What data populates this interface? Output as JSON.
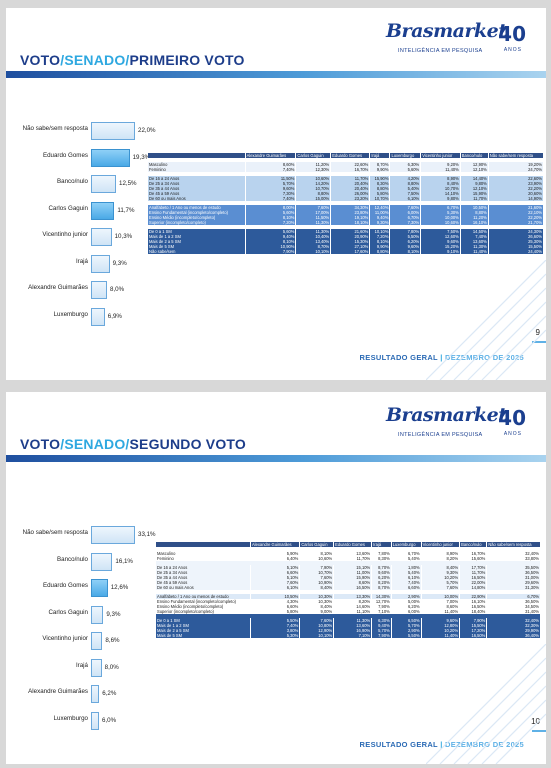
{
  "brand": {
    "name": "Brasmarket",
    "tagline": "INTELIGÊNCIA EM PESQUISA",
    "years": "40",
    "years_label": "ANOS"
  },
  "slides": [
    {
      "title_a": "VOTO",
      "title_b": "SENADO",
      "title_c": "PRIMEIRO VOTO",
      "page": "9",
      "footer_a": "RESULTADO GERAL",
      "footer_b": "DEZEMBRO DE 2025",
      "chart_data": {
        "type": "bar",
        "categories": [
          "Não sabe/sem resposta",
          "Eduardo Gomes",
          "Banco/nulo",
          "Carlos Gaguin",
          "Vicentinho junior",
          "Irajá",
          "Alexandre Guimarães",
          "Luxemburgo"
        ],
        "values": [
          22.0,
          19.3,
          12.5,
          11.7,
          10.3,
          9.3,
          8.0,
          6.9
        ],
        "labels": [
          "22,0%",
          "19,3%",
          "12,5%",
          "11,7%",
          "10,3%",
          "9,3%",
          "8,0%",
          "6,9%"
        ],
        "highlight": [
          false,
          true,
          false,
          true,
          false,
          false,
          false,
          false
        ],
        "xlim": [
          0,
          22
        ]
      },
      "table": {
        "headers": [
          "",
          "Alexandre Guimarães",
          "Carlos Gaguin",
          "Eduardo Gomes",
          "Irajá",
          "Luxemburgo",
          "Vicentinho junior",
          "Banco/nulo",
          "Não sabe/sem resposta"
        ],
        "groups": [
          {
            "rows": [
              [
                "Masculino",
                "8,60%",
                "11,20%",
                "22,60%",
                "8,70%",
                "6,30%",
                "9,20%",
                "12,90%",
                "19,20%"
              ],
              [
                "Feminino",
                "7,40%",
                "12,30%",
                "16,70%",
                "9,90%",
                "5,60%",
                "11,40%",
                "12,10%",
                "24,70%"
              ]
            ]
          },
          {
            "rows": [
              [
                "De 16 a 24 Anos",
                "11,50%",
                "10,60%",
                "11,70%",
                "15,90%",
                "4,20%",
                "8,90%",
                "14,40%",
                "22,60%"
              ],
              [
                "De 25 a 34 Anos",
                "5,70%",
                "14,20%",
                "20,40%",
                "8,30%",
                "8,80%",
                "8,40%",
                "9,80%",
                "23,90%"
              ],
              [
                "De 35 a 44 Anos",
                "9,60%",
                "10,70%",
                "20,40%",
                "8,80%",
                "5,40%",
                "10,70%",
                "12,10%",
                "22,20%"
              ],
              [
                "De 45 a 59 Anos",
                "7,30%",
                "8,80%",
                "26,00%",
                "5,80%",
                "7,50%",
                "14,10%",
                "15,90%",
                "20,60%"
              ],
              [
                "De 60 ou mais Anos",
                "7,40%",
                "15,00%",
                "23,20%",
                "10,70%",
                "6,10%",
                "9,80%",
                "11,70%",
                "14,90%"
              ]
            ]
          },
          {
            "rows": [
              [
                "Analfabeto / 1 Ano ou menos de estudo",
                "8,00%",
                "7,60%",
                "34,30%",
                "12,40%",
                "7,60%",
                "6,70%",
                "10,50%",
                "21,60%"
              ],
              [
                "Ensino Fundamental (incompleto/completo)",
                "5,60%",
                "17,00%",
                "23,80%",
                "11,00%",
                "6,00%",
                "5,30%",
                "8,80%",
                "22,10%"
              ],
              [
                "Ensino Médio (incompleto/completo)",
                "8,10%",
                "11,50%",
                "19,10%",
                "9,40%",
                "6,70%",
                "10,00%",
                "11,20%",
                "22,20%"
              ],
              [
                "Superior (incompleto/completo)",
                "7,20%",
                "11,30%",
                "18,10%",
                "9,30%",
                "7,30%",
                "10,60%",
                "16,10%",
                "21,70%"
              ]
            ]
          },
          {
            "rows": [
              [
                "De 0 a 1 SM",
                "5,60%",
                "11,30%",
                "21,60%",
                "10,10%",
                "7,80%",
                "7,50%",
                "14,50%",
                "24,30%"
              ],
              [
                "Mais de 1 a 2 SM",
                "9,40%",
                "10,40%",
                "20,90%",
                "7,20%",
                "5,50%",
                "12,60%",
                "7,40%",
                "26,60%"
              ],
              [
                "Mais de 2 a 5 SM",
                "8,10%",
                "13,40%",
                "15,30%",
                "8,10%",
                "6,20%",
                "9,60%",
                "13,60%",
                "25,30%"
              ],
              [
                "Mais de 5 SM",
                "10,90%",
                "8,70%",
                "27,10%",
                "9,90%",
                "9,60%",
                "15,20%",
                "11,30%",
                "15,50%"
              ],
              [
                "Não sabe/sem",
                "7,90%",
                "10,10%",
                "17,60%",
                "8,80%",
                "8,10%",
                "9,10%",
                "11,40%",
                "24,40%"
              ]
            ]
          }
        ]
      }
    },
    {
      "title_a": "VOTO",
      "title_b": "SENADO",
      "title_c": "SEGUNDO VOTO",
      "page": "10",
      "footer_a": "RESULTADO GERAL",
      "footer_b": "DEZEMBRO DE 2025",
      "chart_data": {
        "type": "bar",
        "categories": [
          "Não sabe/sem resposta",
          "Banco/nulo",
          "Eduardo Gomes",
          "Carlos Gaguin",
          "Vicentinho junior",
          "Irajá",
          "Alexandre Guimarães",
          "Luxemburgo"
        ],
        "values": [
          33.1,
          16.1,
          12.6,
          9.3,
          8.6,
          8.0,
          6.2,
          6.0
        ],
        "labels": [
          "33,1%",
          "16,1%",
          "12,6%",
          "9,3%",
          "8,6%",
          "8,0%",
          "6,2%",
          "6,0%"
        ],
        "highlight": [
          false,
          false,
          true,
          false,
          false,
          false,
          false,
          false
        ],
        "xlim": [
          0,
          33.1
        ]
      },
      "table": {
        "headers": [
          "",
          "Alexandre Guimarães",
          "Carlos Gaguin",
          "Eduardo Gomes",
          "Irajá",
          "Luxemburgo",
          "Vicentinho junior",
          "Banco/nulo",
          "Não sabe/sem resposta"
        ],
        "groups": [
          {
            "rows": [
              [
                "Masculino",
                "5,90%",
                "8,10%",
                "13,60%",
                "7,80%",
                "6,70%",
                "8,90%",
                "16,70%",
                "32,40%"
              ],
              [
                "Feminino",
                "6,40%",
                "10,60%",
                "11,70%",
                "8,30%",
                "5,40%",
                "8,20%",
                "15,60%",
                "33,80%"
              ]
            ]
          },
          {
            "rows": [
              [
                "De 16 a 24 Anos",
                "5,10%",
                "7,90%",
                "15,10%",
                "8,70%",
                "1,80%",
                "8,40%",
                "17,70%",
                "35,50%"
              ],
              [
                "De 25 a 34 Anos",
                "6,60%",
                "10,70%",
                "11,00%",
                "9,60%",
                "5,40%",
                "9,30%",
                "11,70%",
                "36,50%"
              ],
              [
                "De 35 a 44 Anos",
                "5,10%",
                "7,60%",
                "15,90%",
                "6,20%",
                "6,10%",
                "10,20%",
                "16,50%",
                "31,00%"
              ],
              [
                "De 45 a 59 Anos",
                "7,60%",
                "10,90%",
                "8,60%",
                "8,20%",
                "7,40%",
                "5,70%",
                "22,00%",
                "29,60%"
              ],
              [
                "De 60 ou mais Anos",
                "6,10%",
                "8,40%",
                "16,50%",
                "8,70%",
                "6,60%",
                "7,60%",
                "14,80%",
                "31,30%"
              ]
            ]
          },
          {
            "rows": [
              [
                "Analfabeto / 1 Ano ou menos de estudo",
                "10,50%",
                "10,30%",
                "13,30%",
                "14,30%",
                "2,90%",
                "10,00%",
                "22,90%",
                "6,70%"
              ],
              [
                "Ensino Fundamental (incompleto/completo)",
                "4,30%",
                "10,30%",
                "8,20%",
                "12,70%",
                "5,00%",
                "7,00%",
                "16,10%",
                "36,50%"
              ],
              [
                "Ensino Médio (incompleto/completo)",
                "6,60%",
                "8,40%",
                "14,60%",
                "7,90%",
                "6,20%",
                "8,60%",
                "16,50%",
                "34,50%"
              ],
              [
                "Superior (incompleto/completo)",
                "5,80%",
                "9,00%",
                "11,10%",
                "7,10%",
                "6,00%",
                "11,40%",
                "18,40%",
                "31,40%"
              ]
            ]
          },
          {
            "rows": [
              [
                "De 0 a 1 SM",
                "5,50%",
                "7,60%",
                "11,30%",
                "6,30%",
                "6,50%",
                "9,60%",
                "7,90%",
                "32,40%"
              ],
              [
                "Mais de 1 a 2 SM",
                "7,40%",
                "10,80%",
                "13,60%",
                "9,40%",
                "5,70%",
                "12,80%",
                "15,50%",
                "32,30%"
              ],
              [
                "Mais de 2 a 5 SM",
                "3,80%",
                "12,90%",
                "16,90%",
                "5,70%",
                "2,90%",
                "10,20%",
                "17,20%",
                "29,90%"
              ],
              [
                "Mais de 5 SM",
                "5,30%",
                "10,10%",
                "7,10%",
                "7,90%",
                "5,50%",
                "11,40%",
                "16,50%",
                "36,40%"
              ]
            ]
          }
        ]
      }
    }
  ]
}
